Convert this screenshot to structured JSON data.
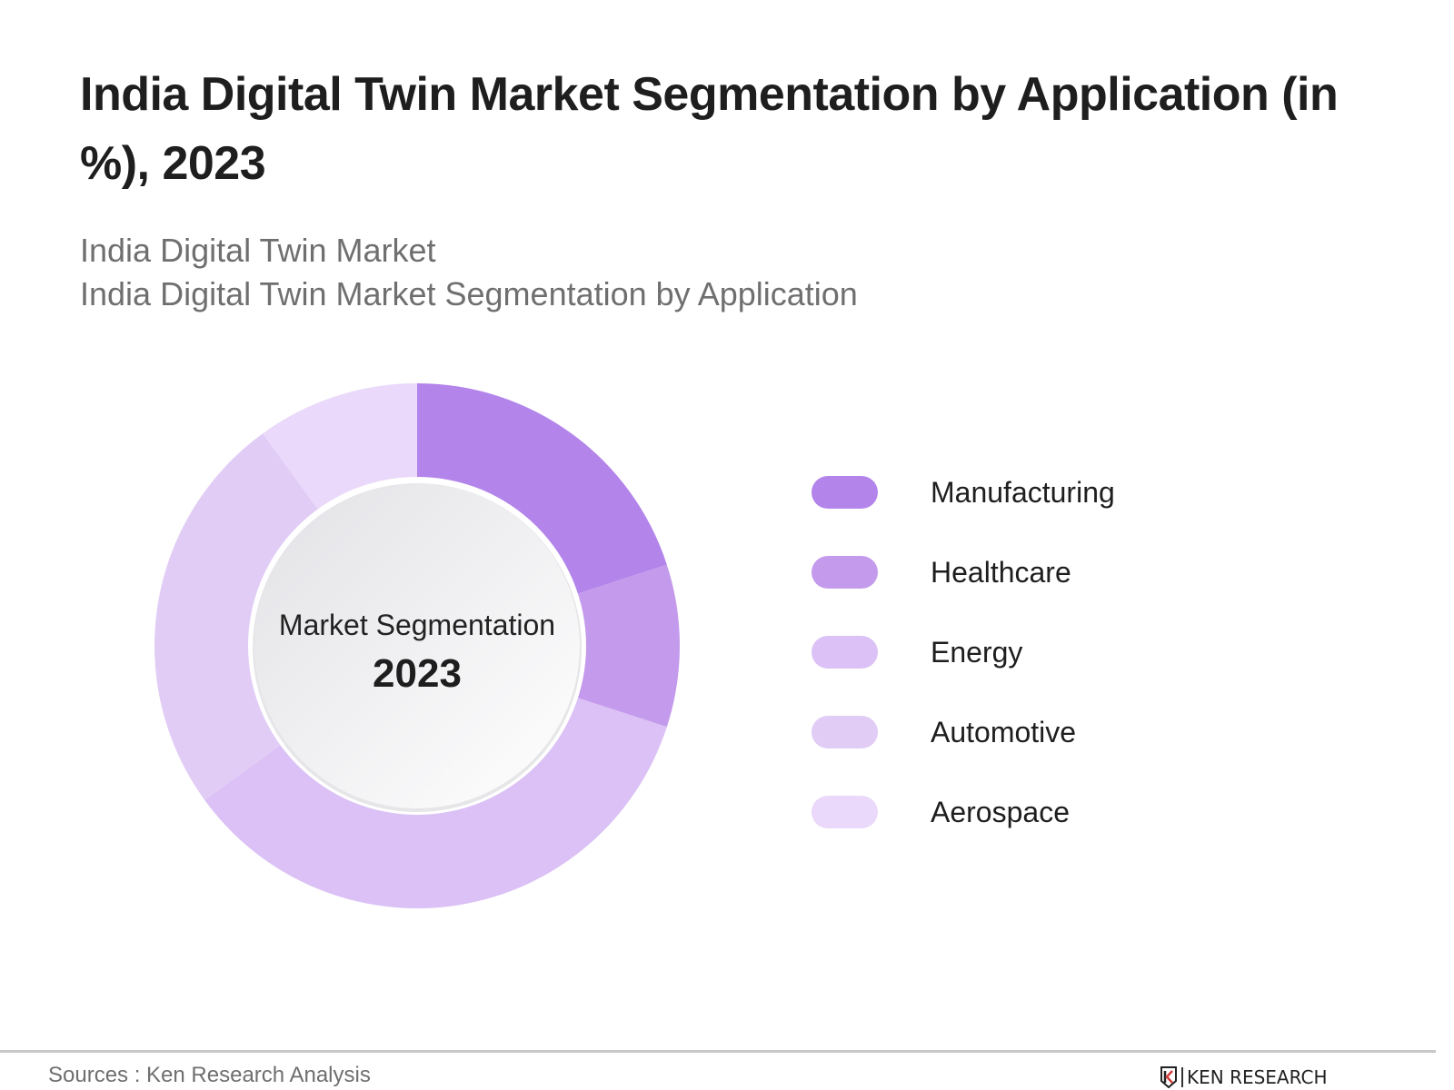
{
  "header": {
    "title": "India Digital Twin Market Segmentation by Application (in %), 2023",
    "subtitle_1": "India Digital Twin Market",
    "subtitle_2": "India Digital Twin Market Segmentation by Application"
  },
  "center": {
    "label": "Market Segmentation",
    "year": "2023"
  },
  "legend": [
    {
      "label": "Manufacturing",
      "color": "#b384ea"
    },
    {
      "label": "Healthcare",
      "color": "#c49bec"
    },
    {
      "label": "Energy",
      "color": "#dbc1f5"
    },
    {
      "label": "Automotive",
      "color": "#e1ccf6"
    },
    {
      "label": "Aerospace",
      "color": "#ead9fa"
    }
  ],
  "footer": {
    "source": "Sources : Ken Research Analysis",
    "brand": "KEN RESEARCH"
  },
  "chart_data": {
    "type": "pie",
    "variant": "donut",
    "title": "India Digital Twin Market Segmentation by Application (in %), 2023",
    "subtitle": "India Digital Twin Market Segmentation by Application",
    "center_label": "Market Segmentation 2023",
    "categories": [
      "Manufacturing",
      "Healthcare",
      "Energy",
      "Automotive",
      "Aerospace"
    ],
    "values": [
      20,
      10,
      35,
      25,
      10
    ],
    "unit": "%",
    "colors": [
      "#b384ea",
      "#c49bec",
      "#dbc1f5",
      "#e1ccf6",
      "#ead9fa"
    ],
    "start_angle_deg": 0,
    "direction": "clockwise",
    "legend_position": "right",
    "data_labels": false
  }
}
